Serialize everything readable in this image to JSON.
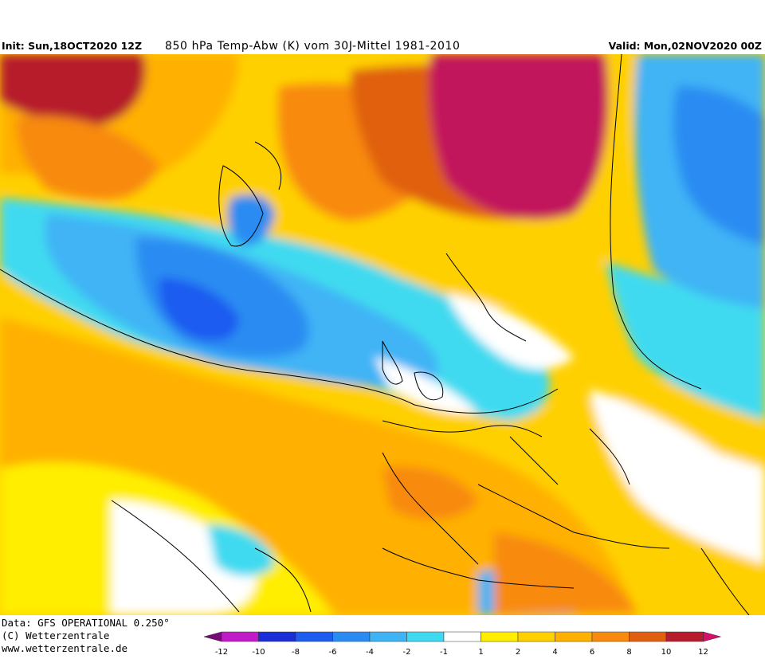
{
  "header": {
    "init": "Init: Sun,18OCT2020 12Z",
    "title": "850 hPa Temp-Abw (K) vom 30J-Mittel 1981-2010",
    "valid": "Valid: Mon,02NOV2020 00Z"
  },
  "footer": {
    "data_line": "Data: GFS OPERATIONAL 0.250°",
    "copyright": "(C) Wetterzentrale",
    "url": "www.wetterzentrale.de"
  },
  "legend": {
    "colors": [
      "#7a0a7a",
      "#c21ac8",
      "#1a2ed8",
      "#1e5cf0",
      "#2a8cf2",
      "#3fb4f5",
      "#3fdaf0",
      "#ffffff",
      "#ffee00",
      "#ffd000",
      "#ffb000",
      "#f88a10",
      "#e06010",
      "#b61c2c",
      "#d4106a"
    ],
    "labels": [
      "-12",
      "-10",
      "-8",
      "-6",
      "-4",
      "-2",
      "-1",
      "1",
      "2",
      "4",
      "6",
      "8",
      "10",
      "12"
    ]
  },
  "map_colors": {
    "neutral": "#ffffff",
    "pos1": "#ffee00",
    "pos2": "#ffd000",
    "pos4": "#ffb000",
    "pos6": "#f88a10",
    "pos8": "#e06010",
    "pos10": "#b61c2c",
    "pos12": "#c2145c",
    "neg1": "#3fdaf0",
    "neg2": "#3fb4f5",
    "neg4": "#2a8cf2",
    "neg6": "#1e5cf0"
  }
}
